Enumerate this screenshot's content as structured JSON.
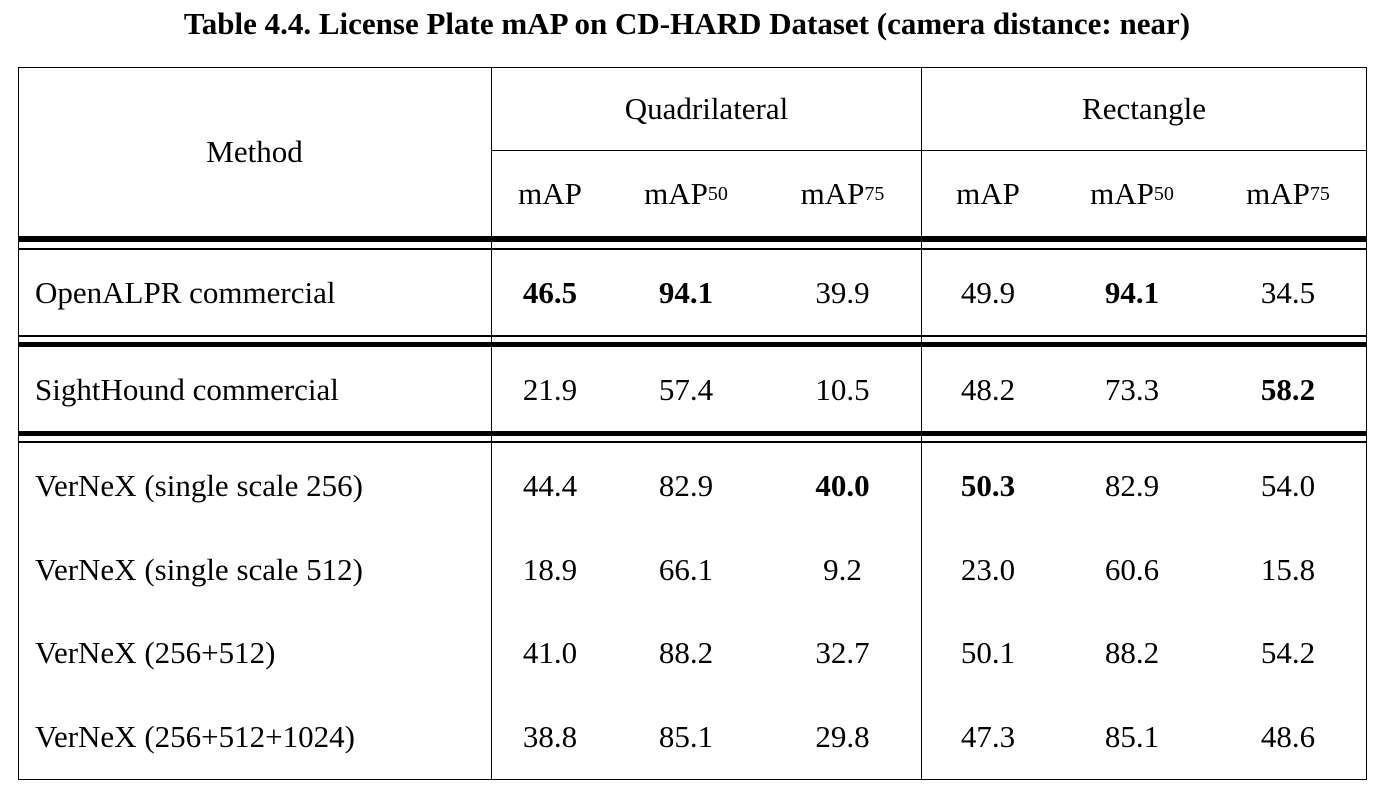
{
  "caption": "Table 4.4. License Plate mAP on CD-HARD Dataset (camera distance: near)",
  "header": {
    "method": "Method",
    "group_quadrilateral": "Quadrilateral",
    "group_rectangle": "Rectangle",
    "metric_base": "mAP",
    "sub_50": "50",
    "sub_75": "75"
  },
  "rows": [
    {
      "method": "OpenALPR commercial",
      "values": [
        "46.5",
        "94.1",
        "39.9",
        "49.9",
        "94.1",
        "34.5"
      ],
      "bold": [
        true,
        true,
        false,
        false,
        true,
        false
      ]
    },
    {
      "method": "SightHound commercial",
      "values": [
        "21.9",
        "57.4",
        "10.5",
        "48.2",
        "73.3",
        "58.2"
      ],
      "bold": [
        false,
        false,
        false,
        false,
        false,
        true
      ]
    },
    {
      "method": "VerNeX (single scale 256)",
      "values": [
        "44.4",
        "82.9",
        "40.0",
        "50.3",
        "82.9",
        "54.0"
      ],
      "bold": [
        false,
        false,
        true,
        true,
        false,
        false
      ]
    },
    {
      "method": "VerNeX (single scale 512)",
      "values": [
        "18.9",
        "66.1",
        "9.2",
        "23.0",
        "60.6",
        "15.8"
      ],
      "bold": [
        false,
        false,
        false,
        false,
        false,
        false
      ]
    },
    {
      "method": "VerNeX (256+512)",
      "values": [
        "41.0",
        "88.2",
        "32.7",
        "50.1",
        "88.2",
        "54.2"
      ],
      "bold": [
        false,
        false,
        false,
        false,
        false,
        false
      ]
    },
    {
      "method": "VerNeX (256+512+1024)",
      "values": [
        "38.8",
        "85.1",
        "29.8",
        "47.3",
        "85.1",
        "48.6"
      ],
      "bold": [
        false,
        false,
        false,
        false,
        false,
        false
      ]
    }
  ]
}
